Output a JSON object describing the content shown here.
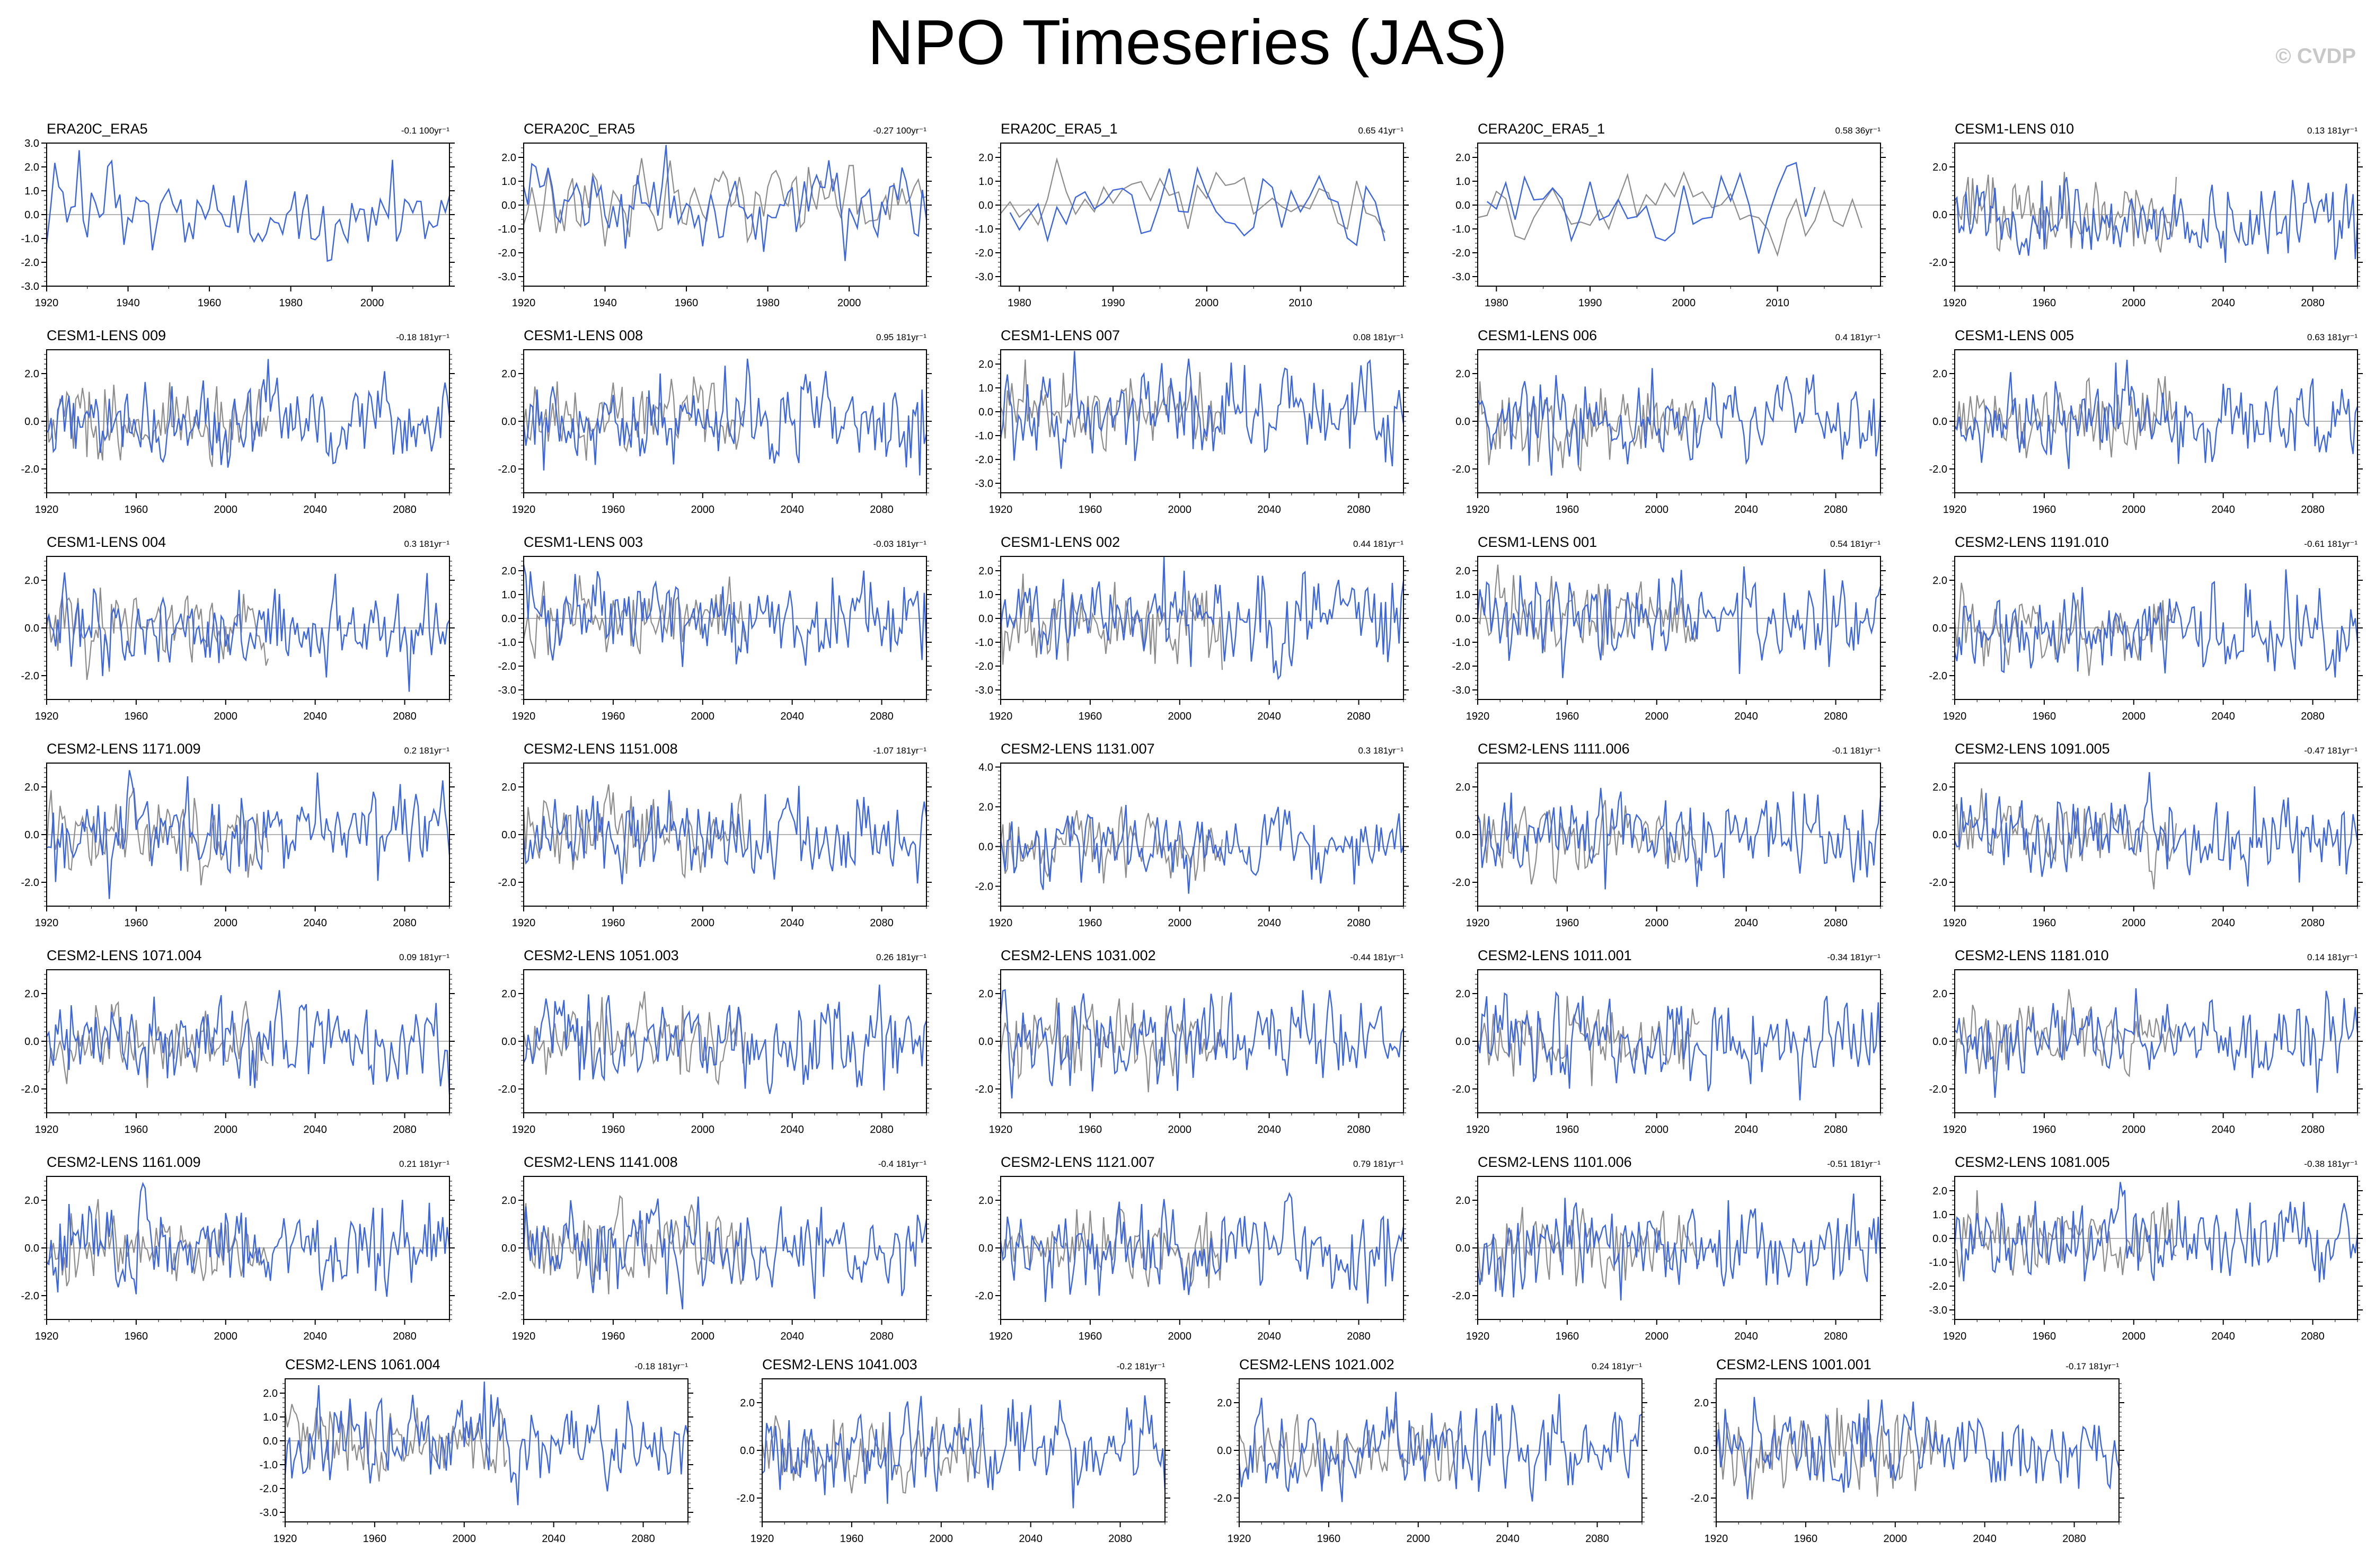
{
  "title": "NPO Timeseries (JAS)",
  "credit": "© CVDP",
  "colors": {
    "model": "#3b66e0",
    "observed": "#8c8c8c",
    "zero": "#9a9a9a",
    "frame": "#000000"
  },
  "chart_data": [
    {
      "type": "line",
      "name": "ERA20C_ERA5",
      "trend": "-0.1 100yr⁻¹",
      "x_start": 1920,
      "n_points": 100,
      "xlim": [
        1920,
        2019
      ],
      "x_ticks": [
        1920,
        1940,
        1960,
        1980,
        2000
      ],
      "ylim": [
        -3,
        3
      ],
      "y_ticks": [
        3.0,
        2.0,
        1.0,
        0.0,
        -1.0,
        -2.0,
        -3.0
      ],
      "observed_overlay": false,
      "seed": 11
    },
    {
      "type": "line",
      "name": "CERA20C_ERA5",
      "trend": "-0.27 100yr⁻¹",
      "x_start": 1920,
      "n_points": 100,
      "xlim": [
        1920,
        2019
      ],
      "x_ticks": [
        1920,
        1940,
        1960,
        1980,
        2000
      ],
      "ylim": [
        -3.4,
        2.6
      ],
      "y_ticks": [
        2.0,
        1.0,
        0.0,
        -1.0,
        -2.0,
        -3.0
      ],
      "observed_overlay": true,
      "seed": 12
    },
    {
      "type": "line",
      "name": "ERA20C_ERA5_1",
      "trend": "0.65 41yr⁻¹",
      "x_start": 1979,
      "n_points": 41,
      "xlim": [
        1978,
        2021
      ],
      "x_ticks": [
        1980,
        1990,
        2000,
        2010
      ],
      "ylim": [
        -3.4,
        2.6
      ],
      "y_ticks": [
        2.0,
        1.0,
        0.0,
        -1.0,
        -2.0,
        -3.0
      ],
      "observed_overlay": true,
      "seed": 13
    },
    {
      "type": "line",
      "name": "CERA20C_ERA5_1",
      "trend": "0.58 36yr⁻¹",
      "x_start": 1979,
      "n_points": 36,
      "xlim": [
        1978,
        2021
      ],
      "x_ticks": [
        1980,
        1990,
        2000,
        2010
      ],
      "ylim": [
        -3.4,
        2.6
      ],
      "y_ticks": [
        2.0,
        1.0,
        0.0,
        -1.0,
        -2.0,
        -3.0
      ],
      "observed_overlay": true,
      "seed": 14
    },
    {
      "type": "line",
      "name": "CESM1-LENS 010",
      "trend": "0.13 181yr⁻¹",
      "x_start": 1920,
      "n_points": 181,
      "xlim": [
        1920,
        2100
      ],
      "x_ticks": [
        1920,
        1960,
        2000,
        2040,
        2080
      ],
      "ylim": [
        -3,
        3
      ],
      "y_ticks": [
        2.0,
        0.0,
        -2.0
      ],
      "observed_overlay": true,
      "seed": 15
    },
    {
      "type": "line",
      "name": "CESM1-LENS 009",
      "trend": "-0.18 181yr⁻¹",
      "x_start": 1920,
      "n_points": 181,
      "xlim": [
        1920,
        2100
      ],
      "x_ticks": [
        1920,
        1960,
        2000,
        2040,
        2080
      ],
      "ylim": [
        -3,
        3
      ],
      "y_ticks": [
        2.0,
        0.0,
        -2.0
      ],
      "observed_overlay": true,
      "seed": 16
    },
    {
      "type": "line",
      "name": "CESM1-LENS 008",
      "trend": "0.95 181yr⁻¹",
      "x_start": 1920,
      "n_points": 181,
      "xlim": [
        1920,
        2100
      ],
      "x_ticks": [
        1920,
        1960,
        2000,
        2040,
        2080
      ],
      "ylim": [
        -3,
        3
      ],
      "y_ticks": [
        2.0,
        0.0,
        -2.0
      ],
      "observed_overlay": true,
      "seed": 17
    },
    {
      "type": "line",
      "name": "CESM1-LENS 007",
      "trend": "0.08 181yr⁻¹",
      "x_start": 1920,
      "n_points": 181,
      "xlim": [
        1920,
        2100
      ],
      "x_ticks": [
        1920,
        1960,
        2000,
        2040,
        2080
      ],
      "ylim": [
        -3.4,
        2.6
      ],
      "y_ticks": [
        2.0,
        1.0,
        0.0,
        -1.0,
        -2.0,
        -3.0
      ],
      "observed_overlay": true,
      "seed": 18
    },
    {
      "type": "line",
      "name": "CESM1-LENS 006",
      "trend": "0.4 181yr⁻¹",
      "x_start": 1920,
      "n_points": 181,
      "xlim": [
        1920,
        2100
      ],
      "x_ticks": [
        1920,
        1960,
        2000,
        2040,
        2080
      ],
      "ylim": [
        -3,
        3
      ],
      "y_ticks": [
        2.0,
        0.0,
        -2.0
      ],
      "observed_overlay": true,
      "seed": 19
    },
    {
      "type": "line",
      "name": "CESM1-LENS 005",
      "trend": "0.63 181yr⁻¹",
      "x_start": 1920,
      "n_points": 181,
      "xlim": [
        1920,
        2100
      ],
      "x_ticks": [
        1920,
        1960,
        2000,
        2040,
        2080
      ],
      "ylim": [
        -3,
        3
      ],
      "y_ticks": [
        2.0,
        0.0,
        -2.0
      ],
      "observed_overlay": true,
      "seed": 20
    },
    {
      "type": "line",
      "name": "CESM1-LENS 004",
      "trend": "0.3 181yr⁻¹",
      "x_start": 1920,
      "n_points": 181,
      "xlim": [
        1920,
        2100
      ],
      "x_ticks": [
        1920,
        1960,
        2000,
        2040,
        2080
      ],
      "ylim": [
        -3,
        3
      ],
      "y_ticks": [
        2.0,
        0.0,
        -2.0
      ],
      "observed_overlay": true,
      "seed": 21
    },
    {
      "type": "line",
      "name": "CESM1-LENS 003",
      "trend": "-0.03 181yr⁻¹",
      "x_start": 1920,
      "n_points": 181,
      "xlim": [
        1920,
        2100
      ],
      "x_ticks": [
        1920,
        1960,
        2000,
        2040,
        2080
      ],
      "ylim": [
        -3.4,
        2.6
      ],
      "y_ticks": [
        2.0,
        1.0,
        0.0,
        -1.0,
        -2.0,
        -3.0
      ],
      "observed_overlay": true,
      "seed": 22
    },
    {
      "type": "line",
      "name": "CESM1-LENS 002",
      "trend": "0.44 181yr⁻¹",
      "x_start": 1920,
      "n_points": 181,
      "xlim": [
        1920,
        2100
      ],
      "x_ticks": [
        1920,
        1960,
        2000,
        2040,
        2080
      ],
      "ylim": [
        -3.4,
        2.6
      ],
      "y_ticks": [
        2.0,
        1.0,
        0.0,
        -1.0,
        -2.0,
        -3.0
      ],
      "observed_overlay": true,
      "seed": 23
    },
    {
      "type": "line",
      "name": "CESM1-LENS 001",
      "trend": "0.54 181yr⁻¹",
      "x_start": 1920,
      "n_points": 181,
      "xlim": [
        1920,
        2100
      ],
      "x_ticks": [
        1920,
        1960,
        2000,
        2040,
        2080
      ],
      "ylim": [
        -3.4,
        2.6
      ],
      "y_ticks": [
        2.0,
        1.0,
        0.0,
        -1.0,
        -2.0,
        -3.0
      ],
      "observed_overlay": true,
      "seed": 24
    },
    {
      "type": "line",
      "name": "CESM2-LENS 1191.010",
      "trend": "-0.61 181yr⁻¹",
      "x_start": 1920,
      "n_points": 181,
      "xlim": [
        1920,
        2100
      ],
      "x_ticks": [
        1920,
        1960,
        2000,
        2040,
        2080
      ],
      "ylim": [
        -3,
        3
      ],
      "y_ticks": [
        2.0,
        0.0,
        -2.0
      ],
      "observed_overlay": true,
      "seed": 25
    },
    {
      "type": "line",
      "name": "CESM2-LENS 1171.009",
      "trend": "0.2 181yr⁻¹",
      "x_start": 1920,
      "n_points": 181,
      "xlim": [
        1920,
        2100
      ],
      "x_ticks": [
        1920,
        1960,
        2000,
        2040,
        2080
      ],
      "ylim": [
        -3,
        3
      ],
      "y_ticks": [
        2.0,
        0.0,
        -2.0
      ],
      "observed_overlay": true,
      "seed": 26
    },
    {
      "type": "line",
      "name": "CESM2-LENS 1151.008",
      "trend": "-1.07 181yr⁻¹",
      "x_start": 1920,
      "n_points": 181,
      "xlim": [
        1920,
        2100
      ],
      "x_ticks": [
        1920,
        1960,
        2000,
        2040,
        2080
      ],
      "ylim": [
        -3,
        3
      ],
      "y_ticks": [
        2.0,
        0.0,
        -2.0
      ],
      "observed_overlay": true,
      "seed": 27
    },
    {
      "type": "line",
      "name": "CESM2-LENS 1131.007",
      "trend": "0.3 181yr⁻¹",
      "x_start": 1920,
      "n_points": 181,
      "xlim": [
        1920,
        2100
      ],
      "x_ticks": [
        1920,
        1960,
        2000,
        2040,
        2080
      ],
      "ylim": [
        -3,
        4.2
      ],
      "y_ticks": [
        4.0,
        2.0,
        0.0,
        -2.0
      ],
      "observed_overlay": true,
      "seed": 28
    },
    {
      "type": "line",
      "name": "CESM2-LENS 1111.006",
      "trend": "-0.1 181yr⁻¹",
      "x_start": 1920,
      "n_points": 181,
      "xlim": [
        1920,
        2100
      ],
      "x_ticks": [
        1920,
        1960,
        2000,
        2040,
        2080
      ],
      "ylim": [
        -3,
        3
      ],
      "y_ticks": [
        2.0,
        0.0,
        -2.0
      ],
      "observed_overlay": true,
      "seed": 29
    },
    {
      "type": "line",
      "name": "CESM2-LENS 1091.005",
      "trend": "-0.47 181yr⁻¹",
      "x_start": 1920,
      "n_points": 181,
      "xlim": [
        1920,
        2100
      ],
      "x_ticks": [
        1920,
        1960,
        2000,
        2040,
        2080
      ],
      "ylim": [
        -3,
        3
      ],
      "y_ticks": [
        2.0,
        0.0,
        -2.0
      ],
      "observed_overlay": true,
      "seed": 30
    },
    {
      "type": "line",
      "name": "CESM2-LENS 1071.004",
      "trend": "0.09 181yr⁻¹",
      "x_start": 1920,
      "n_points": 181,
      "xlim": [
        1920,
        2100
      ],
      "x_ticks": [
        1920,
        1960,
        2000,
        2040,
        2080
      ],
      "ylim": [
        -3,
        3
      ],
      "y_ticks": [
        2.0,
        0.0,
        -2.0
      ],
      "observed_overlay": true,
      "seed": 31
    },
    {
      "type": "line",
      "name": "CESM2-LENS 1051.003",
      "trend": "0.26 181yr⁻¹",
      "x_start": 1920,
      "n_points": 181,
      "xlim": [
        1920,
        2100
      ],
      "x_ticks": [
        1920,
        1960,
        2000,
        2040,
        2080
      ],
      "ylim": [
        -3,
        3
      ],
      "y_ticks": [
        2.0,
        0.0,
        -2.0
      ],
      "observed_overlay": true,
      "seed": 32
    },
    {
      "type": "line",
      "name": "CESM2-LENS 1031.002",
      "trend": "-0.44 181yr⁻¹",
      "x_start": 1920,
      "n_points": 181,
      "xlim": [
        1920,
        2100
      ],
      "x_ticks": [
        1920,
        1960,
        2000,
        2040,
        2080
      ],
      "ylim": [
        -3,
        3
      ],
      "y_ticks": [
        2.0,
        0.0,
        -2.0
      ],
      "observed_overlay": true,
      "seed": 33
    },
    {
      "type": "line",
      "name": "CESM2-LENS 1011.001",
      "trend": "-0.34 181yr⁻¹",
      "x_start": 1920,
      "n_points": 181,
      "xlim": [
        1920,
        2100
      ],
      "x_ticks": [
        1920,
        1960,
        2000,
        2040,
        2080
      ],
      "ylim": [
        -3,
        3
      ],
      "y_ticks": [
        2.0,
        0.0,
        -2.0
      ],
      "observed_overlay": true,
      "seed": 34
    },
    {
      "type": "line",
      "name": "CESM2-LENS 1181.010",
      "trend": "0.14 181yr⁻¹",
      "x_start": 1920,
      "n_points": 181,
      "xlim": [
        1920,
        2100
      ],
      "x_ticks": [
        1920,
        1960,
        2000,
        2040,
        2080
      ],
      "ylim": [
        -3,
        3
      ],
      "y_ticks": [
        2.0,
        0.0,
        -2.0
      ],
      "observed_overlay": true,
      "seed": 35
    },
    {
      "type": "line",
      "name": "CESM2-LENS 1161.009",
      "trend": "0.21 181yr⁻¹",
      "x_start": 1920,
      "n_points": 181,
      "xlim": [
        1920,
        2100
      ],
      "x_ticks": [
        1920,
        1960,
        2000,
        2040,
        2080
      ],
      "ylim": [
        -3,
        3
      ],
      "y_ticks": [
        2.0,
        0.0,
        -2.0
      ],
      "observed_overlay": true,
      "seed": 36
    },
    {
      "type": "line",
      "name": "CESM2-LENS 1141.008",
      "trend": "-0.4 181yr⁻¹",
      "x_start": 1920,
      "n_points": 181,
      "xlim": [
        1920,
        2100
      ],
      "x_ticks": [
        1920,
        1960,
        2000,
        2040,
        2080
      ],
      "ylim": [
        -3,
        3
      ],
      "y_ticks": [
        2.0,
        0.0,
        -2.0
      ],
      "observed_overlay": true,
      "seed": 37
    },
    {
      "type": "line",
      "name": "CESM2-LENS 1121.007",
      "trend": "0.79 181yr⁻¹",
      "x_start": 1920,
      "n_points": 181,
      "xlim": [
        1920,
        2100
      ],
      "x_ticks": [
        1920,
        1960,
        2000,
        2040,
        2080
      ],
      "ylim": [
        -3,
        3
      ],
      "y_ticks": [
        2.0,
        0.0,
        -2.0
      ],
      "observed_overlay": true,
      "seed": 38
    },
    {
      "type": "line",
      "name": "CESM2-LENS 1101.006",
      "trend": "-0.51 181yr⁻¹",
      "x_start": 1920,
      "n_points": 181,
      "xlim": [
        1920,
        2100
      ],
      "x_ticks": [
        1920,
        1960,
        2000,
        2040,
        2080
      ],
      "ylim": [
        -3,
        3
      ],
      "y_ticks": [
        2.0,
        0.0,
        -2.0
      ],
      "observed_overlay": true,
      "seed": 39
    },
    {
      "type": "line",
      "name": "CESM2-LENS 1081.005",
      "trend": "-0.38 181yr⁻¹",
      "x_start": 1920,
      "n_points": 181,
      "xlim": [
        1920,
        2100
      ],
      "x_ticks": [
        1920,
        1960,
        2000,
        2040,
        2080
      ],
      "ylim": [
        -3.4,
        2.6
      ],
      "y_ticks": [
        2.0,
        1.0,
        0.0,
        -1.0,
        -2.0,
        -3.0
      ],
      "observed_overlay": true,
      "seed": 40
    },
    {
      "type": "line",
      "name": "CESM2-LENS 1061.004",
      "trend": "-0.18 181yr⁻¹",
      "x_start": 1920,
      "n_points": 181,
      "xlim": [
        1920,
        2100
      ],
      "x_ticks": [
        1920,
        1960,
        2000,
        2040,
        2080
      ],
      "ylim": [
        -3.4,
        2.6
      ],
      "y_ticks": [
        2.0,
        1.0,
        0.0,
        -1.0,
        -2.0,
        -3.0
      ],
      "observed_overlay": true,
      "seed": 41
    },
    {
      "type": "line",
      "name": "CESM2-LENS 1041.003",
      "trend": "-0.2 181yr⁻¹",
      "x_start": 1920,
      "n_points": 181,
      "xlim": [
        1920,
        2100
      ],
      "x_ticks": [
        1920,
        1960,
        2000,
        2040,
        2080
      ],
      "ylim": [
        -3,
        3
      ],
      "y_ticks": [
        2.0,
        0.0,
        -2.0
      ],
      "observed_overlay": true,
      "seed": 42
    },
    {
      "type": "line",
      "name": "CESM2-LENS 1021.002",
      "trend": "0.24 181yr⁻¹",
      "x_start": 1920,
      "n_points": 181,
      "xlim": [
        1920,
        2100
      ],
      "x_ticks": [
        1920,
        1960,
        2000,
        2040,
        2080
      ],
      "ylim": [
        -3,
        3
      ],
      "y_ticks": [
        2.0,
        0.0,
        -2.0
      ],
      "observed_overlay": true,
      "seed": 43
    },
    {
      "type": "line",
      "name": "CESM2-LENS 1001.001",
      "trend": "-0.17 181yr⁻¹",
      "x_start": 1920,
      "n_points": 181,
      "xlim": [
        1920,
        2100
      ],
      "x_ticks": [
        1920,
        1960,
        2000,
        2040,
        2080
      ],
      "ylim": [
        -3,
        3
      ],
      "y_ticks": [
        2.0,
        0.0,
        -2.0
      ],
      "observed_overlay": true,
      "seed": 44
    }
  ]
}
